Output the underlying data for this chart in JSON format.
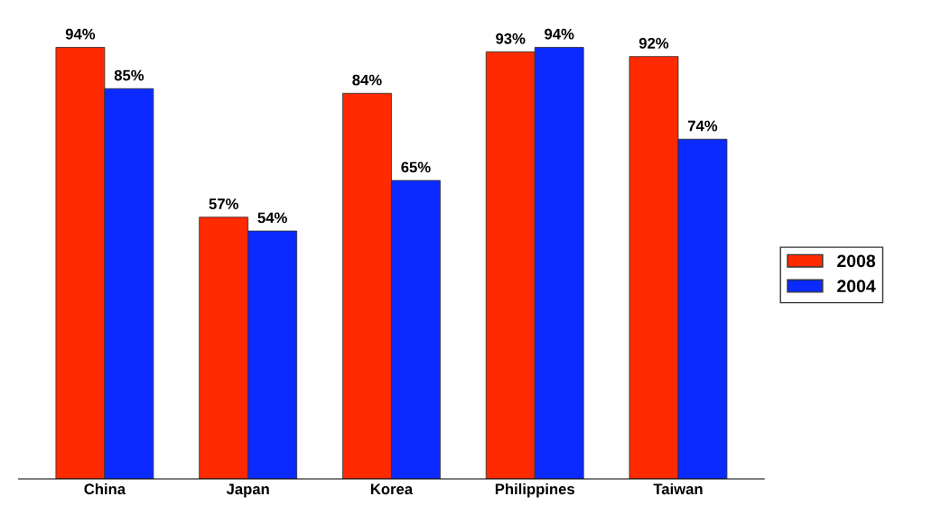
{
  "chart_data": {
    "type": "bar",
    "categories": [
      "China",
      "Japan",
      "Korea",
      "Philippines",
      "Taiwan"
    ],
    "series": [
      {
        "name": "2008",
        "color": "#ff2a00",
        "values": [
          94,
          57,
          84,
          93,
          92
        ],
        "value_labels": [
          "94%",
          "57%",
          "84%",
          "93%",
          "92%"
        ]
      },
      {
        "name": "2004",
        "color": "#0a2aff",
        "values": [
          85,
          54,
          65,
          94,
          74
        ],
        "value_labels": [
          "85%",
          "54%",
          "65%",
          "94%",
          "74%"
        ]
      }
    ],
    "tick_labels": "x",
    "legend": "right",
    "grid": false
  }
}
